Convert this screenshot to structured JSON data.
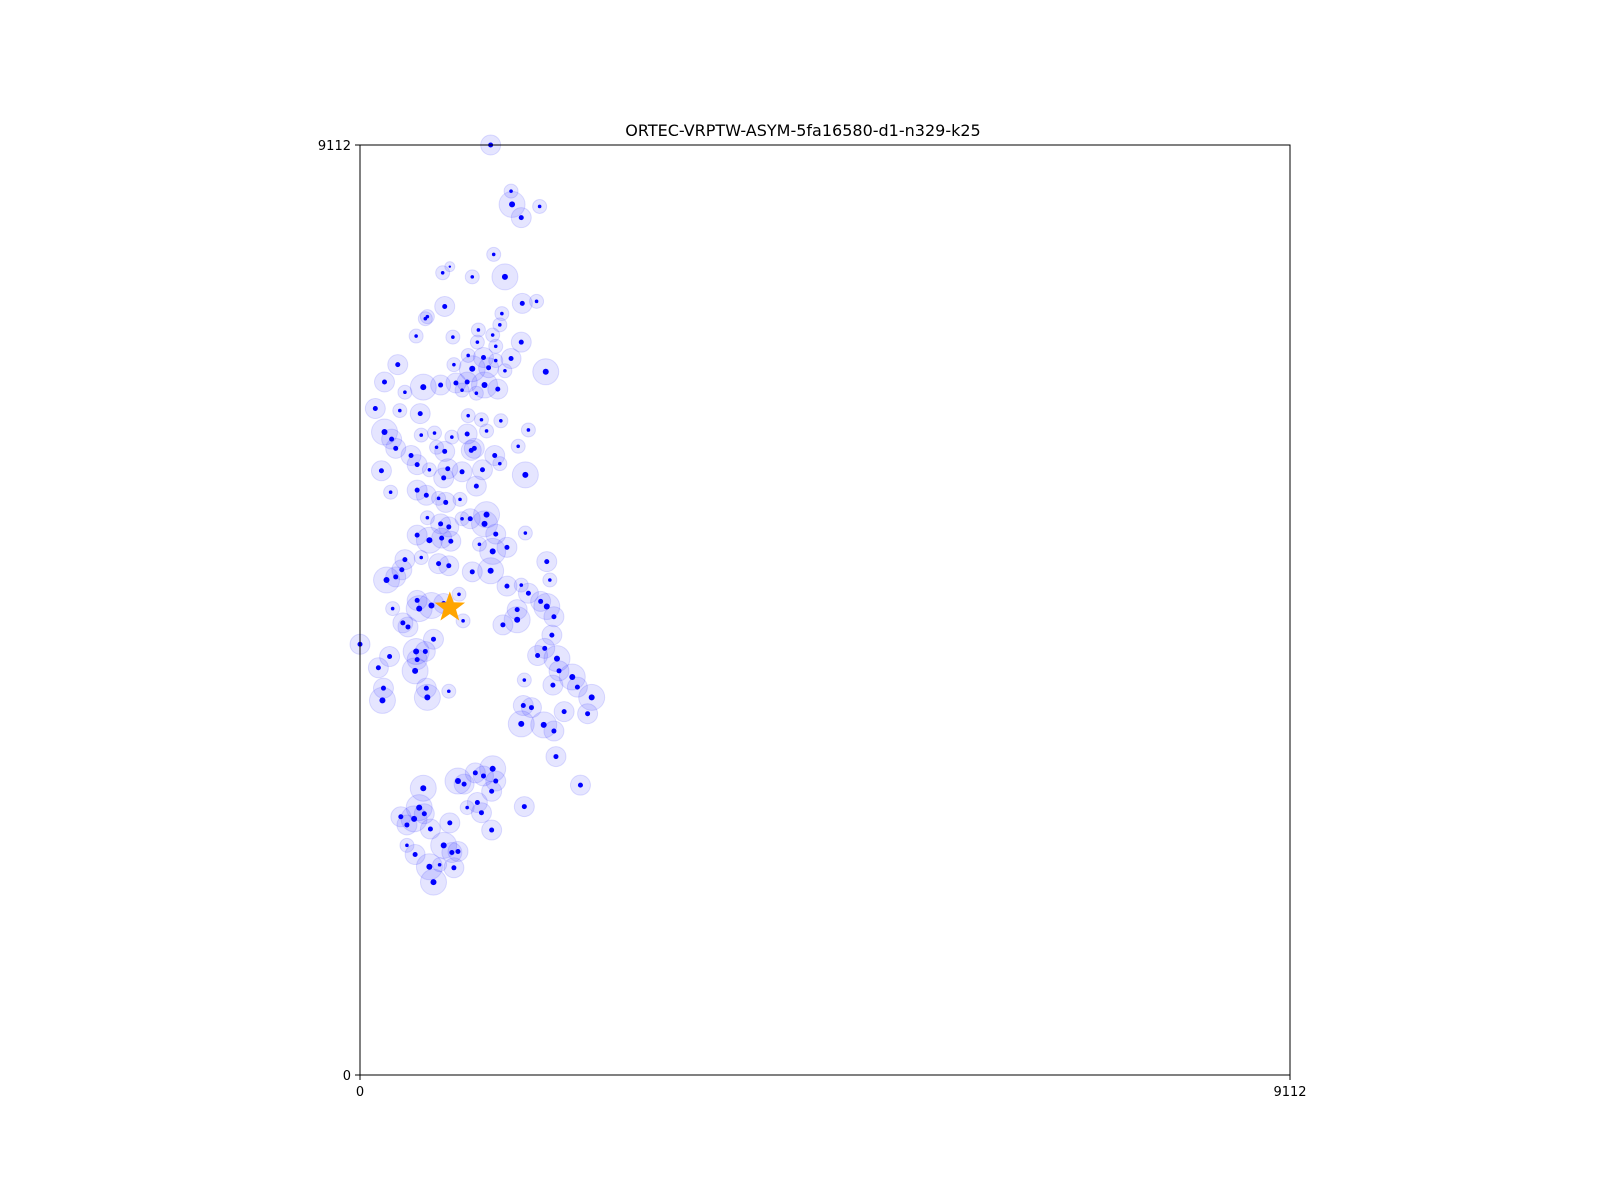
{
  "chart_data": {
    "type": "scatter",
    "title": "ORTEC-VRPTW-ASYM-5fa16580-d1-n329-k25",
    "xlabel": "",
    "ylabel": "",
    "xlim": [
      0,
      9112
    ],
    "ylim": [
      0,
      9112
    ],
    "x_ticks": [
      "0",
      "9112"
    ],
    "y_ticks": [
      "0",
      "9112"
    ],
    "grid": false,
    "colors": {
      "client": "#0000ff",
      "client_halo": "#0000ff",
      "depot": "#ffa500"
    },
    "depot": {
      "x": 880,
      "y": 4580
    },
    "clients": [
      {
        "x": 1280,
        "y": 9112,
        "s": 2
      },
      {
        "x": 1480,
        "y": 8660,
        "s": 1
      },
      {
        "x": 1490,
        "y": 8530,
        "s": 3
      },
      {
        "x": 1580,
        "y": 8400,
        "s": 2
      },
      {
        "x": 1760,
        "y": 8510,
        "s": 1
      },
      {
        "x": 1310,
        "y": 8040,
        "s": 1
      },
      {
        "x": 810,
        "y": 7860,
        "s": 1
      },
      {
        "x": 880,
        "y": 7920,
        "s": 0
      },
      {
        "x": 1100,
        "y": 7820,
        "s": 1
      },
      {
        "x": 1420,
        "y": 7820,
        "s": 3
      },
      {
        "x": 830,
        "y": 7530,
        "s": 2
      },
      {
        "x": 1390,
        "y": 7460,
        "s": 1
      },
      {
        "x": 1590,
        "y": 7560,
        "s": 2
      },
      {
        "x": 1730,
        "y": 7580,
        "s": 1
      },
      {
        "x": 1370,
        "y": 7350,
        "s": 1
      },
      {
        "x": 660,
        "y": 7430,
        "s": 1
      },
      {
        "x": 640,
        "y": 7410,
        "s": 1
      },
      {
        "x": 1160,
        "y": 7300,
        "s": 1
      },
      {
        "x": 1300,
        "y": 7250,
        "s": 1
      },
      {
        "x": 1580,
        "y": 7180,
        "s": 2
      },
      {
        "x": 550,
        "y": 7240,
        "s": 1
      },
      {
        "x": 910,
        "y": 7230,
        "s": 1
      },
      {
        "x": 1150,
        "y": 7180,
        "s": 1
      },
      {
        "x": 1330,
        "y": 7140,
        "s": 1
      },
      {
        "x": 1060,
        "y": 7050,
        "s": 1
      },
      {
        "x": 1210,
        "y": 7030,
        "s": 2
      },
      {
        "x": 1330,
        "y": 7000,
        "s": 1
      },
      {
        "x": 1480,
        "y": 7020,
        "s": 2
      },
      {
        "x": 920,
        "y": 6960,
        "s": 1
      },
      {
        "x": 1100,
        "y": 6920,
        "s": 3
      },
      {
        "x": 1260,
        "y": 6930,
        "s": 2
      },
      {
        "x": 1420,
        "y": 6900,
        "s": 1
      },
      {
        "x": 1820,
        "y": 6890,
        "s": 3
      },
      {
        "x": 370,
        "y": 6960,
        "s": 2
      },
      {
        "x": 240,
        "y": 6790,
        "s": 2
      },
      {
        "x": 440,
        "y": 6690,
        "s": 1
      },
      {
        "x": 620,
        "y": 6740,
        "s": 3
      },
      {
        "x": 790,
        "y": 6760,
        "s": 2
      },
      {
        "x": 940,
        "y": 6780,
        "s": 2
      },
      {
        "x": 1050,
        "y": 6790,
        "s": 2
      },
      {
        "x": 1220,
        "y": 6760,
        "s": 3
      },
      {
        "x": 1350,
        "y": 6720,
        "s": 2
      },
      {
        "x": 1000,
        "y": 6710,
        "s": 1
      },
      {
        "x": 1140,
        "y": 6680,
        "s": 1
      },
      {
        "x": 150,
        "y": 6530,
        "s": 2
      },
      {
        "x": 390,
        "y": 6510,
        "s": 1
      },
      {
        "x": 590,
        "y": 6480,
        "s": 2
      },
      {
        "x": 1060,
        "y": 6460,
        "s": 1
      },
      {
        "x": 1190,
        "y": 6420,
        "s": 1
      },
      {
        "x": 1380,
        "y": 6410,
        "s": 1
      },
      {
        "x": 240,
        "y": 6300,
        "s": 3
      },
      {
        "x": 310,
        "y": 6230,
        "s": 2
      },
      {
        "x": 600,
        "y": 6270,
        "s": 1
      },
      {
        "x": 730,
        "y": 6290,
        "s": 1
      },
      {
        "x": 900,
        "y": 6250,
        "s": 1
      },
      {
        "x": 1050,
        "y": 6280,
        "s": 2
      },
      {
        "x": 1240,
        "y": 6310,
        "s": 1
      },
      {
        "x": 1650,
        "y": 6320,
        "s": 1
      },
      {
        "x": 350,
        "y": 6140,
        "s": 2
      },
      {
        "x": 500,
        "y": 6070,
        "s": 2
      },
      {
        "x": 750,
        "y": 6150,
        "s": 1
      },
      {
        "x": 830,
        "y": 6110,
        "s": 2
      },
      {
        "x": 1090,
        "y": 6120,
        "s": 2
      },
      {
        "x": 1120,
        "y": 6140,
        "s": 2
      },
      {
        "x": 1320,
        "y": 6070,
        "s": 2
      },
      {
        "x": 1550,
        "y": 6160,
        "s": 1
      },
      {
        "x": 210,
        "y": 5920,
        "s": 2
      },
      {
        "x": 560,
        "y": 5980,
        "s": 2
      },
      {
        "x": 680,
        "y": 5930,
        "s": 1
      },
      {
        "x": 860,
        "y": 5940,
        "s": 2
      },
      {
        "x": 1000,
        "y": 5910,
        "s": 2
      },
      {
        "x": 1200,
        "y": 5930,
        "s": 2
      },
      {
        "x": 1370,
        "y": 5990,
        "s": 1
      },
      {
        "x": 1620,
        "y": 5880,
        "s": 3
      },
      {
        "x": 820,
        "y": 5850,
        "s": 2
      },
      {
        "x": 300,
        "y": 5710,
        "s": 1
      },
      {
        "x": 560,
        "y": 5730,
        "s": 2
      },
      {
        "x": 650,
        "y": 5680,
        "s": 2
      },
      {
        "x": 770,
        "y": 5650,
        "s": 1
      },
      {
        "x": 840,
        "y": 5610,
        "s": 2
      },
      {
        "x": 980,
        "y": 5640,
        "s": 1
      },
      {
        "x": 1140,
        "y": 5770,
        "s": 2
      },
      {
        "x": 1240,
        "y": 5490,
        "s": 3
      },
      {
        "x": 660,
        "y": 5460,
        "s": 1
      },
      {
        "x": 790,
        "y": 5400,
        "s": 2
      },
      {
        "x": 870,
        "y": 5370,
        "s": 2
      },
      {
        "x": 1000,
        "y": 5450,
        "s": 1
      },
      {
        "x": 1080,
        "y": 5450,
        "s": 2
      },
      {
        "x": 1220,
        "y": 5400,
        "s": 3
      },
      {
        "x": 1330,
        "y": 5300,
        "s": 2
      },
      {
        "x": 1620,
        "y": 5310,
        "s": 1
      },
      {
        "x": 560,
        "y": 5290,
        "s": 2
      },
      {
        "x": 680,
        "y": 5240,
        "s": 3
      },
      {
        "x": 800,
        "y": 5260,
        "s": 2
      },
      {
        "x": 890,
        "y": 5230,
        "s": 2
      },
      {
        "x": 1170,
        "y": 5200,
        "s": 1
      },
      {
        "x": 1300,
        "y": 5130,
        "s": 3
      },
      {
        "x": 1440,
        "y": 5170,
        "s": 2
      },
      {
        "x": 440,
        "y": 5050,
        "s": 2
      },
      {
        "x": 410,
        "y": 4950,
        "s": 2
      },
      {
        "x": 600,
        "y": 5070,
        "s": 1
      },
      {
        "x": 770,
        "y": 5010,
        "s": 2
      },
      {
        "x": 870,
        "y": 4990,
        "s": 2
      },
      {
        "x": 1100,
        "y": 4930,
        "s": 2
      },
      {
        "x": 1280,
        "y": 4940,
        "s": 3
      },
      {
        "x": 1830,
        "y": 5030,
        "s": 2
      },
      {
        "x": 1860,
        "y": 4850,
        "s": 1
      },
      {
        "x": 260,
        "y": 4850,
        "s": 3
      },
      {
        "x": 350,
        "y": 4880,
        "s": 2
      },
      {
        "x": 1440,
        "y": 4790,
        "s": 2
      },
      {
        "x": 1580,
        "y": 4800,
        "s": 1
      },
      {
        "x": 1650,
        "y": 4720,
        "s": 2
      },
      {
        "x": 1770,
        "y": 4640,
        "s": 2
      },
      {
        "x": 1830,
        "y": 4590,
        "s": 3
      },
      {
        "x": 1900,
        "y": 4490,
        "s": 2
      },
      {
        "x": 1540,
        "y": 4560,
        "s": 2
      },
      {
        "x": 1540,
        "y": 4460,
        "s": 3
      },
      {
        "x": 1400,
        "y": 4410,
        "s": 2
      },
      {
        "x": 560,
        "y": 4650,
        "s": 2
      },
      {
        "x": 580,
        "y": 4570,
        "s": 3
      },
      {
        "x": 320,
        "y": 4570,
        "s": 1
      },
      {
        "x": 700,
        "y": 4600,
        "s": 3
      },
      {
        "x": 820,
        "y": 4620,
        "s": 2
      },
      {
        "x": 970,
        "y": 4710,
        "s": 1
      },
      {
        "x": 1010,
        "y": 4450,
        "s": 1
      },
      {
        "x": 420,
        "y": 4430,
        "s": 2
      },
      {
        "x": 470,
        "y": 4390,
        "s": 2
      },
      {
        "x": 720,
        "y": 4270,
        "s": 2
      },
      {
        "x": 550,
        "y": 4150,
        "s": 3
      },
      {
        "x": 640,
        "y": 4150,
        "s": 2
      },
      {
        "x": 560,
        "y": 4070,
        "s": 2
      },
      {
        "x": 0,
        "y": 4220,
        "s": 2
      },
      {
        "x": 290,
        "y": 4100,
        "s": 2
      },
      {
        "x": 180,
        "y": 3990,
        "s": 2
      },
      {
        "x": 540,
        "y": 3960,
        "s": 3
      },
      {
        "x": 1880,
        "y": 4310,
        "s": 2
      },
      {
        "x": 1810,
        "y": 4180,
        "s": 2
      },
      {
        "x": 1740,
        "y": 4110,
        "s": 2
      },
      {
        "x": 1930,
        "y": 4080,
        "s": 3
      },
      {
        "x": 1950,
        "y": 3960,
        "s": 2
      },
      {
        "x": 2080,
        "y": 3900,
        "s": 3
      },
      {
        "x": 1610,
        "y": 3870,
        "s": 1
      },
      {
        "x": 1890,
        "y": 3820,
        "s": 2
      },
      {
        "x": 2130,
        "y": 3800,
        "s": 2
      },
      {
        "x": 2270,
        "y": 3700,
        "s": 3
      },
      {
        "x": 1600,
        "y": 3620,
        "s": 2
      },
      {
        "x": 1680,
        "y": 3600,
        "s": 2
      },
      {
        "x": 2000,
        "y": 3560,
        "s": 2
      },
      {
        "x": 2230,
        "y": 3540,
        "s": 2
      },
      {
        "x": 1580,
        "y": 3440,
        "s": 3
      },
      {
        "x": 1800,
        "y": 3430,
        "s": 3
      },
      {
        "x": 1900,
        "y": 3370,
        "s": 2
      },
      {
        "x": 230,
        "y": 3790,
        "s": 2
      },
      {
        "x": 220,
        "y": 3670,
        "s": 3
      },
      {
        "x": 870,
        "y": 3760,
        "s": 1
      },
      {
        "x": 660,
        "y": 3700,
        "s": 3
      },
      {
        "x": 650,
        "y": 3790,
        "s": 2
      },
      {
        "x": 1920,
        "y": 3120,
        "s": 2
      },
      {
        "x": 1300,
        "y": 3000,
        "s": 3
      },
      {
        "x": 1210,
        "y": 2930,
        "s": 2
      },
      {
        "x": 1130,
        "y": 2960,
        "s": 2
      },
      {
        "x": 1020,
        "y": 2850,
        "s": 2
      },
      {
        "x": 960,
        "y": 2880,
        "s": 3
      },
      {
        "x": 1330,
        "y": 2880,
        "s": 2
      },
      {
        "x": 1290,
        "y": 2780,
        "s": 2
      },
      {
        "x": 620,
        "y": 2810,
        "s": 3
      },
      {
        "x": 1150,
        "y": 2670,
        "s": 2
      },
      {
        "x": 1190,
        "y": 2570,
        "s": 2
      },
      {
        "x": 1050,
        "y": 2620,
        "s": 1
      },
      {
        "x": 2160,
        "y": 2840,
        "s": 2
      },
      {
        "x": 1610,
        "y": 2630,
        "s": 2
      },
      {
        "x": 1290,
        "y": 2400,
        "s": 2
      },
      {
        "x": 580,
        "y": 2620,
        "s": 3
      },
      {
        "x": 530,
        "y": 2510,
        "s": 3
      },
      {
        "x": 400,
        "y": 2530,
        "s": 2
      },
      {
        "x": 460,
        "y": 2450,
        "s": 2
      },
      {
        "x": 630,
        "y": 2560,
        "s": 2
      },
      {
        "x": 880,
        "y": 2470,
        "s": 2
      },
      {
        "x": 690,
        "y": 2410,
        "s": 2
      },
      {
        "x": 460,
        "y": 2250,
        "s": 1
      },
      {
        "x": 540,
        "y": 2160,
        "s": 2
      },
      {
        "x": 820,
        "y": 2250,
        "s": 3
      },
      {
        "x": 900,
        "y": 2180,
        "s": 2
      },
      {
        "x": 960,
        "y": 2190,
        "s": 2
      },
      {
        "x": 680,
        "y": 2040,
        "s": 3
      },
      {
        "x": 720,
        "y": 1890,
        "s": 3
      },
      {
        "x": 920,
        "y": 2030,
        "s": 2
      },
      {
        "x": 780,
        "y": 2060,
        "s": 1
      }
    ]
  }
}
